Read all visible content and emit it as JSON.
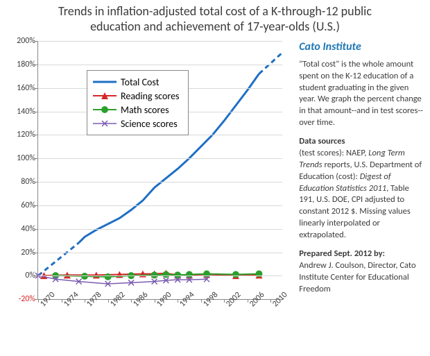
{
  "title_line1": "Trends in inflation-adjusted total cost of a K-through-12 public",
  "title_line2": "education and achievement of 17-year-olds  (U.S.)",
  "sidebar": {
    "heading": "Cato Institute",
    "p1": "\"Total cost\" is the whole amount spent on the K-12 education of a student graduating in the given year. We graph the percent change in that amount--and in test scores--over time.",
    "sources_hd": "Data sources",
    "sources_body_1": "(test scores): NAEP, ",
    "sources_em_1": "Long Term Trends",
    "sources_body_2": " reports, U.S. Department of Education (cost): ",
    "sources_em_2": "Digest of Education Statistics 2011",
    "sources_body_3": ", Table 191, U.S. DOE, CPI adjusted to constant 2012 $.  Missing values linearly interpolated or extrapolated.",
    "byline": "Prepared Sept. 2012 by:",
    "author": "Andrew J. Coulson, Director, Cato Institute Center for Educational Freedom"
  },
  "chart": {
    "type": "line",
    "background_color": "#ffffff",
    "grid_color": "#d9d9d9",
    "axis_color": "#888888",
    "ylim": [
      -20,
      200
    ],
    "xlim": [
      1970,
      2012
    ],
    "yticks": [
      -20,
      0,
      20,
      40,
      60,
      80,
      100,
      120,
      140,
      160,
      180,
      200
    ],
    "ytick_labels": [
      "-20%",
      "0%",
      "20%",
      "40%",
      "60%",
      "80%",
      "100%",
      "120%",
      "140%",
      "160%",
      "180%",
      "200%"
    ],
    "xticks": [
      1970,
      1974,
      1978,
      1982,
      1986,
      1990,
      1994,
      1998,
      2002,
      2006,
      2010
    ],
    "xtick_labels": [
      "1970",
      "1974",
      "1978",
      "1982",
      "1986",
      "1990",
      "1994",
      "1998",
      "2002",
      "2006",
      "2010"
    ],
    "legend": {
      "items": [
        "Total Cost",
        "Reading scores",
        "Math scores",
        "Science scores"
      ]
    },
    "series": [
      {
        "name": "Total Cost",
        "color": "#1f6fc4",
        "line_width": 3,
        "marker": "none",
        "segments": [
          {
            "dash": "7,5",
            "points": [
              [
                1970,
                0
              ],
              [
                1977,
                28
              ]
            ]
          },
          {
            "dash": "none",
            "points": [
              [
                1977,
                28
              ],
              [
                1978,
                33
              ],
              [
                1980,
                39
              ],
              [
                1982,
                44
              ],
              [
                1984,
                49
              ],
              [
                1986,
                56
              ],
              [
                1988,
                64
              ],
              [
                1990,
                75
              ],
              [
                1992,
                83
              ],
              [
                1994,
                91
              ],
              [
                1996,
                100
              ],
              [
                1998,
                110
              ],
              [
                2000,
                120
              ],
              [
                2002,
                132
              ],
              [
                2004,
                145
              ],
              [
                2006,
                158
              ],
              [
                2008,
                172
              ]
            ]
          },
          {
            "dash": "7,5",
            "points": [
              [
                2008,
                172
              ],
              [
                2012,
                190
              ]
            ]
          }
        ]
      },
      {
        "name": "Reading scores",
        "color": "#d62728",
        "line_width": 2,
        "marker": "triangle",
        "marker_size": 5,
        "segments": [
          {
            "dash": "none",
            "points": [
              [
                1971,
                0
              ],
              [
                1975,
                0.5
              ],
              [
                1980,
                0.5
              ],
              [
                1984,
                1
              ],
              [
                1988,
                1.5
              ],
              [
                1990,
                1.5
              ],
              [
                1992,
                2
              ],
              [
                1994,
                0.5
              ],
              [
                1996,
                0.5
              ],
              [
                1999,
                1
              ],
              [
                2004,
                0
              ],
              [
                2008,
                0.5
              ]
            ]
          }
        ]
      },
      {
        "name": "Math scores",
        "color": "#2ca02c",
        "line_width": 2,
        "marker": "circle",
        "marker_size": 5,
        "segments": [
          {
            "dash": "none",
            "points": [
              [
                1973,
                0
              ],
              [
                1978,
                -0.5
              ],
              [
                1982,
                -1
              ],
              [
                1986,
                0
              ],
              [
                1990,
                0.5
              ],
              [
                1992,
                1
              ],
              [
                1994,
                0.5
              ],
              [
                1996,
                1
              ],
              [
                1999,
                1.5
              ],
              [
                2004,
                1
              ],
              [
                2008,
                1.5
              ]
            ]
          }
        ]
      },
      {
        "name": "Science scores",
        "color": "#7b5cb0",
        "line_width": 1.5,
        "marker": "x",
        "marker_size": 4,
        "segments": [
          {
            "dash": "none",
            "points": [
              [
                1970,
                0
              ],
              [
                1973,
                -3
              ],
              [
                1977,
                -5
              ],
              [
                1982,
                -7
              ],
              [
                1986,
                -6
              ],
              [
                1990,
                -5
              ],
              [
                1992,
                -4
              ],
              [
                1994,
                -3.5
              ],
              [
                1996,
                -3.5
              ],
              [
                1999,
                -3
              ]
            ]
          }
        ]
      }
    ]
  }
}
